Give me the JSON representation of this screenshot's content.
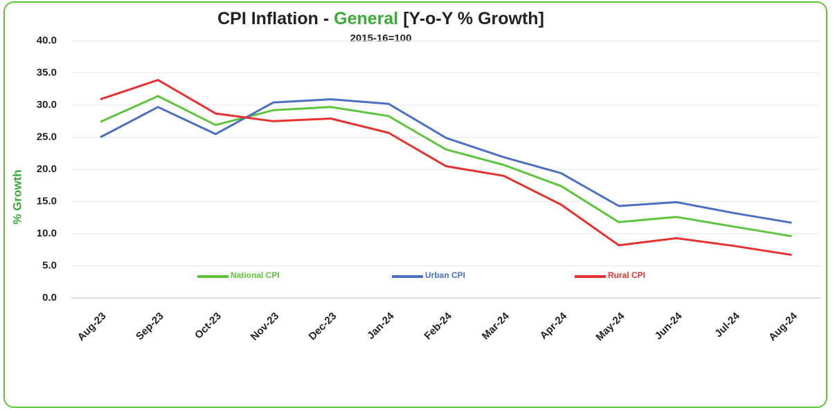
{
  "chart_data": {
    "type": "line",
    "title": [
      "CPI Inflation - ",
      "General",
      " [Y-o-Y % Growth]"
    ],
    "title_colors": [
      "#222222",
      "#3aa935",
      "#222222"
    ],
    "subtitle": "2015-16=100",
    "y_label": "% Growth",
    "categories": [
      "Aug-23",
      "Sep-23",
      "Oct-23",
      "Nov-23",
      "Dec-23",
      "Jan-24",
      "Feb-24",
      "Mar-24",
      "Apr-24",
      "May-24",
      "Jun-24",
      "Jul-24",
      "Aug-24"
    ],
    "series": [
      {
        "name": "National CPI",
        "color": "#5ec43c",
        "values": [
          27.4,
          31.4,
          26.9,
          29.2,
          29.7,
          28.3,
          23.1,
          20.7,
          17.4,
          11.8,
          12.6,
          11.1,
          9.6
        ]
      },
      {
        "name": "Urban CPI",
        "color": "#4a6fc4",
        "values": [
          25.0,
          29.7,
          25.5,
          30.4,
          30.9,
          30.2,
          24.9,
          21.9,
          19.4,
          14.3,
          14.9,
          13.2,
          11.7
        ]
      },
      {
        "name": "Rural CPI",
        "color": "#e8302e",
        "values": [
          30.9,
          33.9,
          28.7,
          27.5,
          27.9,
          25.7,
          20.5,
          19.0,
          14.5,
          8.2,
          9.3,
          8.1,
          6.7
        ]
      }
    ],
    "ylim": [
      0,
      40
    ],
    "yticks": [
      {
        "value": 0,
        "label": "0.0"
      },
      {
        "value": 5,
        "label": "5.0"
      },
      {
        "value": 10,
        "label": "10.0"
      },
      {
        "value": 15,
        "label": "15.0"
      },
      {
        "value": 20,
        "label": "20.0"
      },
      {
        "value": 25,
        "label": "25.0"
      },
      {
        "value": 30,
        "label": "30.0"
      },
      {
        "value": 35,
        "label": "35.0"
      },
      {
        "value": 40,
        "label": "40.0"
      }
    ],
    "grid": true
  }
}
